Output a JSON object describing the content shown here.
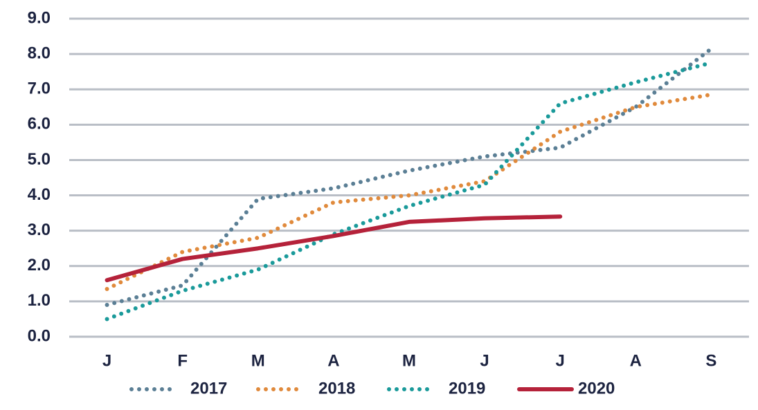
{
  "chart_data": {
    "type": "line",
    "categories": [
      "J",
      "F",
      "M",
      "A",
      "M",
      "J",
      "J",
      "A",
      "S"
    ],
    "series": [
      {
        "name": "2017",
        "color": "#5b7f95",
        "dotted": true,
        "values": [
          0.9,
          1.45,
          3.9,
          4.2,
          4.7,
          5.1,
          5.35,
          6.5,
          8.15
        ]
      },
      {
        "name": "2018",
        "color": "#e08a3c",
        "dotted": true,
        "values": [
          1.35,
          2.4,
          2.8,
          3.8,
          4.0,
          4.4,
          5.8,
          6.5,
          6.85
        ]
      },
      {
        "name": "2019",
        "color": "#1a9a9a",
        "dotted": true,
        "values": [
          0.5,
          1.3,
          1.9,
          2.9,
          3.7,
          4.3,
          6.6,
          7.2,
          7.75
        ]
      },
      {
        "name": "2020",
        "color": "#b5223a",
        "dotted": false,
        "values": [
          1.6,
          2.2,
          2.5,
          2.85,
          3.25,
          3.35,
          3.4,
          null,
          null
        ]
      }
    ],
    "ylim": [
      0,
      9
    ],
    "yticks": [
      {
        "value": 0,
        "label": "0.0"
      },
      {
        "value": 1,
        "label": "1.0"
      },
      {
        "value": 2,
        "label": "2.0"
      },
      {
        "value": 3,
        "label": "3.0"
      },
      {
        "value": 4,
        "label": "4.0"
      },
      {
        "value": 5,
        "label": "5.0"
      },
      {
        "value": 6,
        "label": "6.0"
      },
      {
        "value": 7,
        "label": "7.0"
      },
      {
        "value": 8,
        "label": "8.0"
      },
      {
        "value": 9,
        "label": "9.0"
      }
    ],
    "grid": true,
    "legend": "bottom"
  }
}
